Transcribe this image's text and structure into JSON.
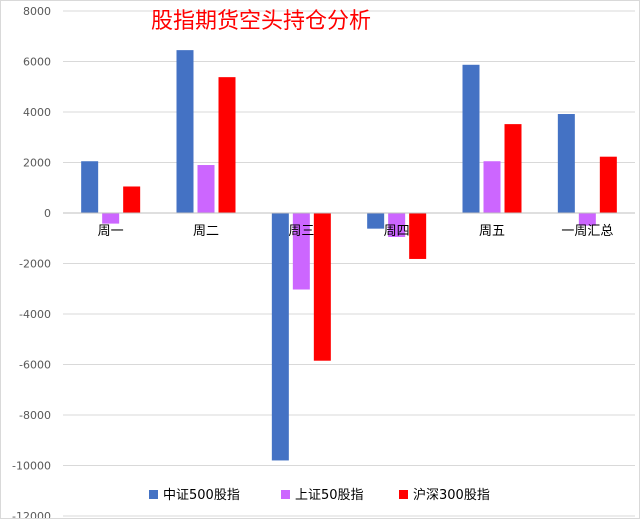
{
  "chart_data": {
    "type": "bar",
    "title": "股指期货空头持仓分析",
    "categories": [
      "周一",
      "周二",
      "周三",
      "周四",
      "周五",
      "一周汇总"
    ],
    "series": [
      {
        "name": "中证500股指",
        "color": "#4472c4",
        "values": [
          2050,
          6450,
          -9800,
          -620,
          5870,
          3920
        ]
      },
      {
        "name": "上证50股指",
        "color": "#cc66ff",
        "values": [
          -420,
          1900,
          -3030,
          -950,
          2050,
          -500
        ]
      },
      {
        "name": "沪深300股指",
        "color": "#ff0000",
        "values": [
          1050,
          5380,
          -5850,
          -1820,
          3520,
          2230
        ]
      }
    ],
    "ylim": [
      -12000,
      8000
    ],
    "yticks": [
      8000,
      6000,
      4000,
      2000,
      0,
      -2000,
      -4000,
      -6000,
      -8000,
      -10000,
      -12000
    ],
    "grid": true,
    "legend": "bottom"
  }
}
